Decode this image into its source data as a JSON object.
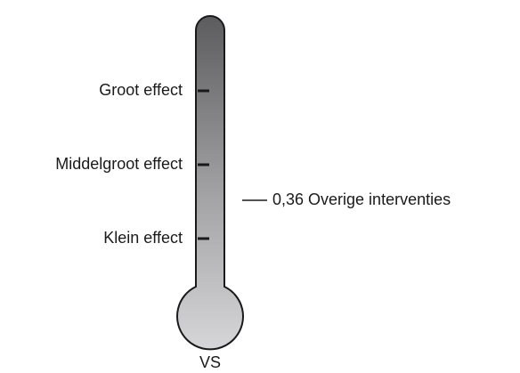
{
  "labels": [
    "Groot effect",
    "Middelgroot effect",
    "Klein effect"
  ],
  "marker": {
    "label": "0,36 Overige interventies"
  },
  "footer": "VS"
}
